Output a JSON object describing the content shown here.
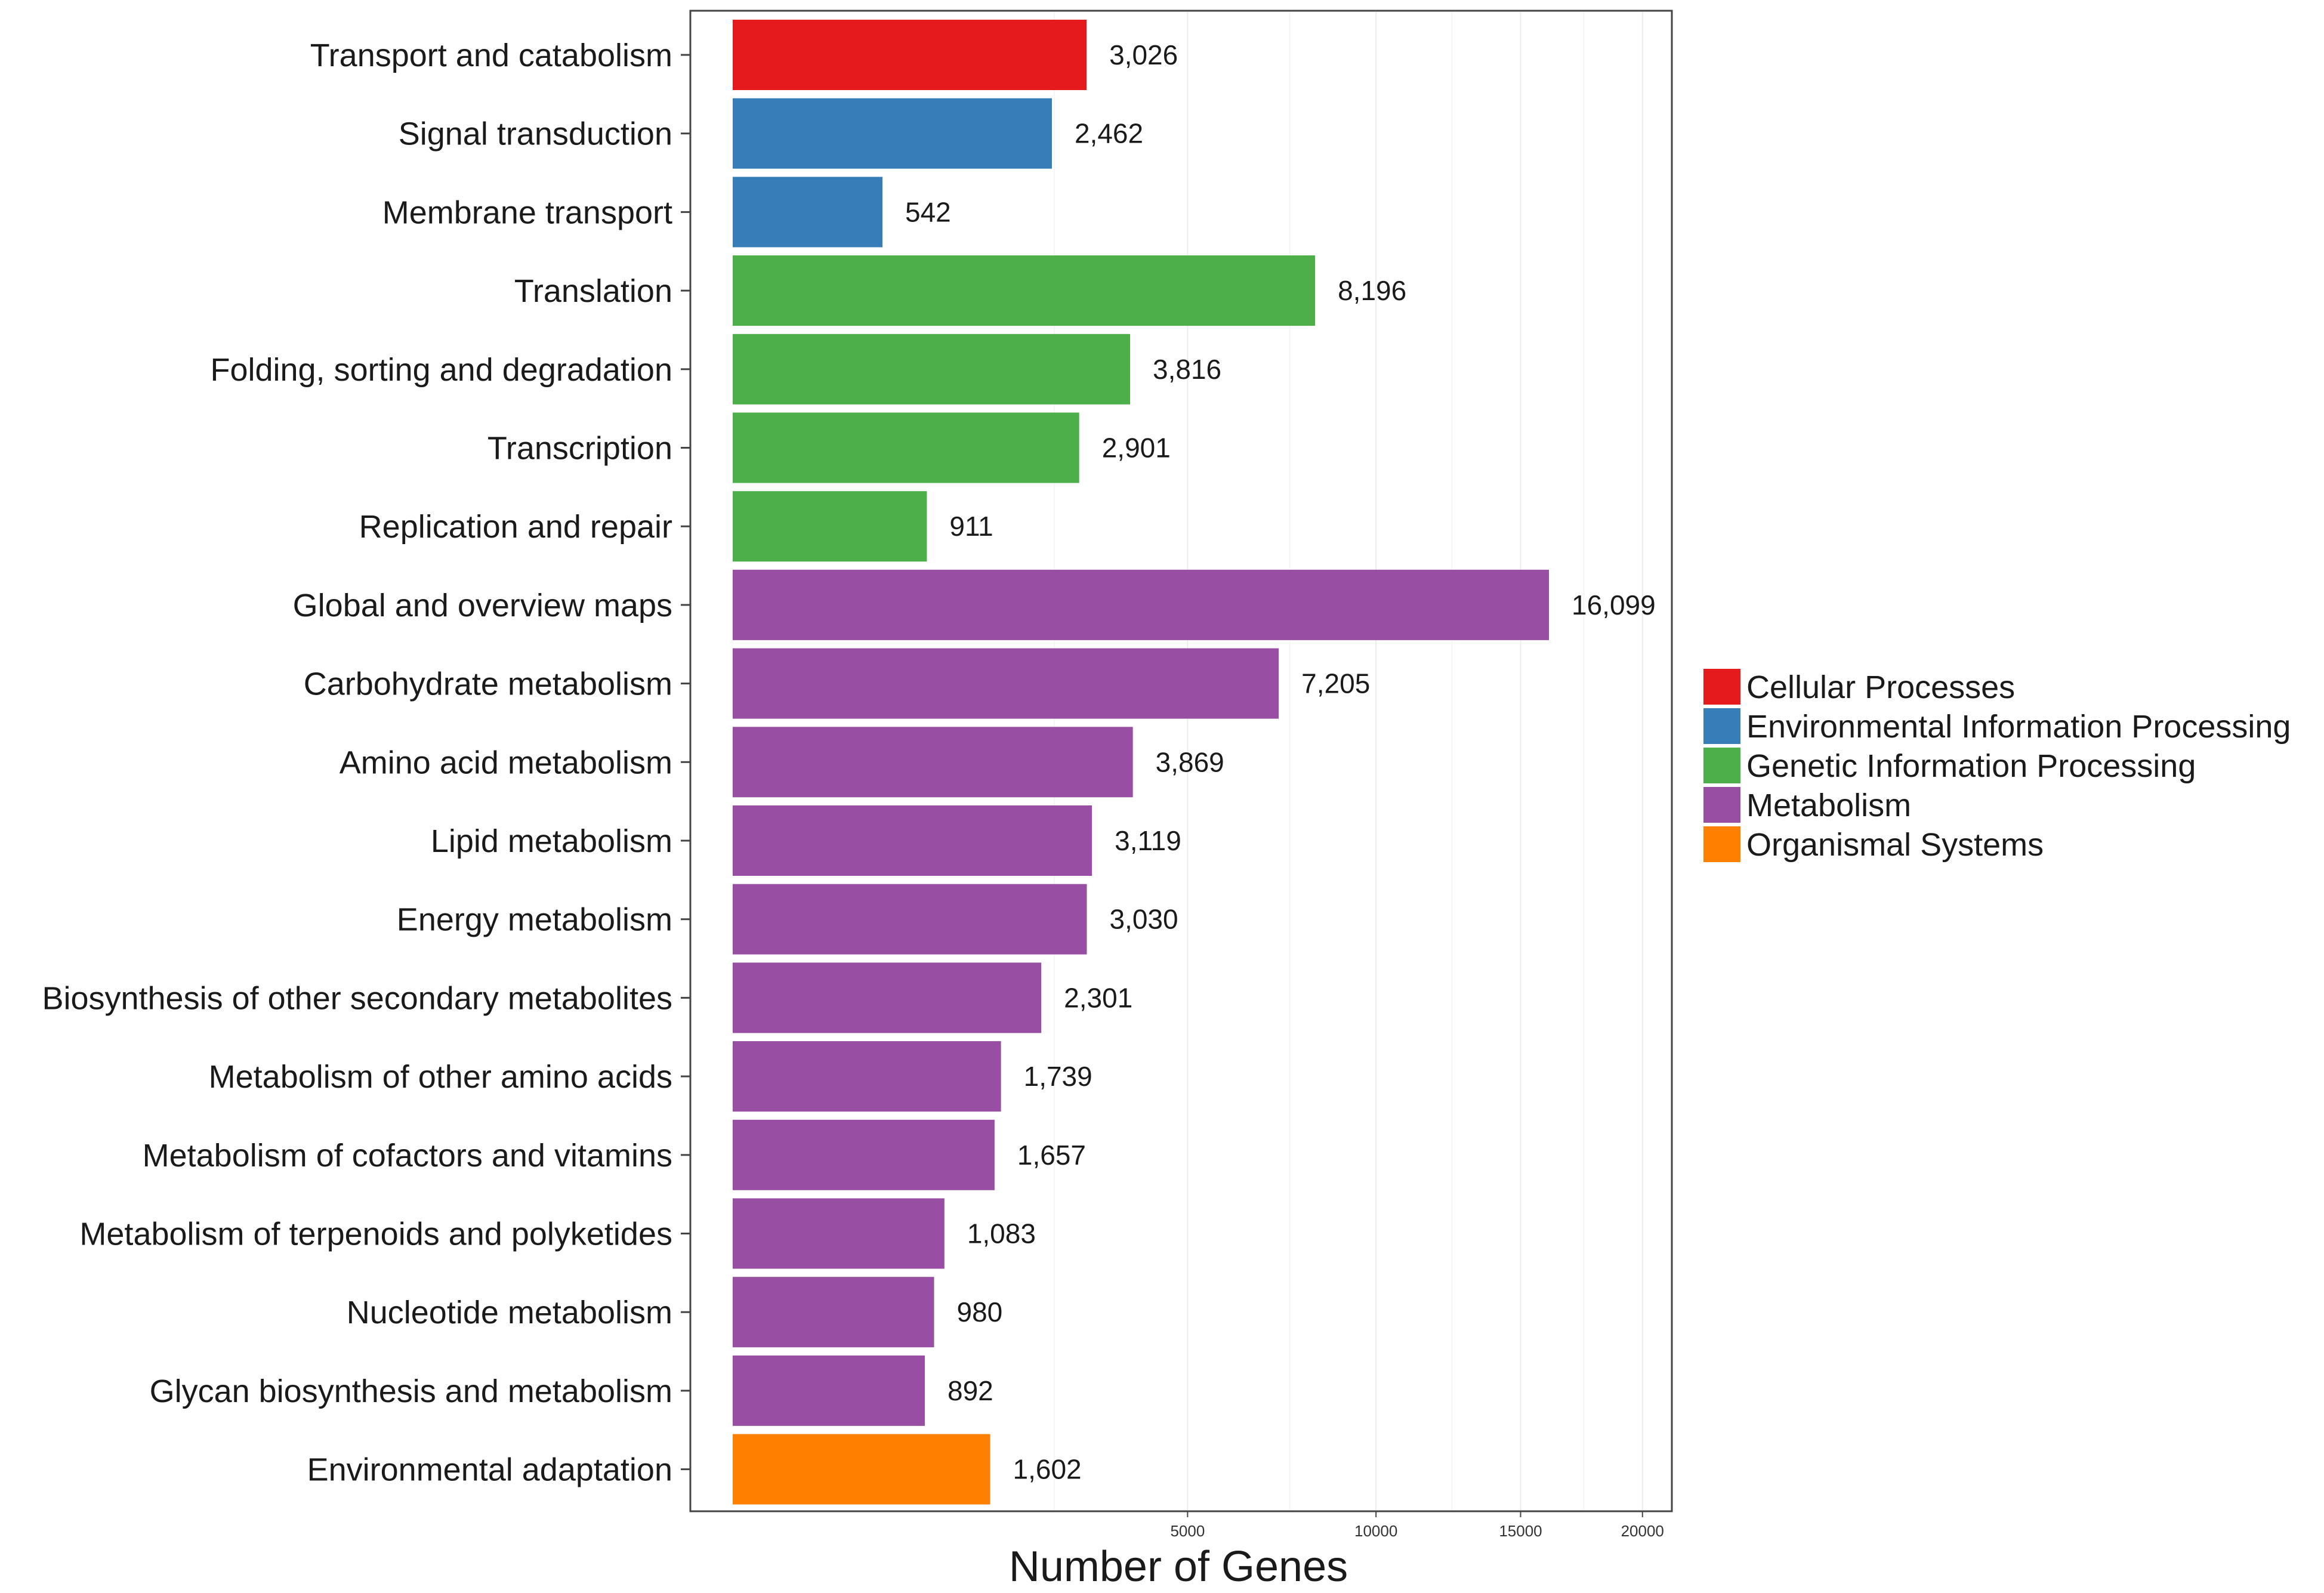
{
  "chart_data": {
    "type": "bar",
    "orientation": "horizontal",
    "title": "",
    "xlabel": "Number of Genes",
    "ylabel": "",
    "xlim": [
      0,
      20000
    ],
    "x_ticks": [
      5000,
      10000,
      15000,
      20000
    ],
    "grid": true,
    "legend_position": "right",
    "colors": {
      "Cellular Processes": "#e41a1c",
      "Environmental Information Processing": "#377eb8",
      "Genetic Information Processing": "#4daf4a",
      "Metabolism": "#984ea3",
      "Organismal Systems": "#ff7f00"
    },
    "legend": [
      "Cellular Processes",
      "Environmental Information Processing",
      "Genetic Information Processing",
      "Metabolism",
      "Organismal Systems"
    ],
    "bars": [
      {
        "label": "Transport and catabolism",
        "value": 3026,
        "display": "3,026",
        "group": "Cellular Processes"
      },
      {
        "label": "Signal transduction",
        "value": 2462,
        "display": "2,462",
        "group": "Environmental Information Processing"
      },
      {
        "label": "Membrane transport",
        "value": 542,
        "display": "542",
        "group": "Environmental Information Processing"
      },
      {
        "label": "Translation",
        "value": 8196,
        "display": "8,196",
        "group": "Genetic Information Processing"
      },
      {
        "label": "Folding, sorting and degradation",
        "value": 3816,
        "display": "3,816",
        "group": "Genetic Information Processing"
      },
      {
        "label": "Transcription",
        "value": 2901,
        "display": "2,901",
        "group": "Genetic Information Processing"
      },
      {
        "label": "Replication and repair",
        "value": 911,
        "display": "911",
        "group": "Genetic Information Processing"
      },
      {
        "label": "Global and overview maps",
        "value": 16099,
        "display": "16,099",
        "group": "Metabolism"
      },
      {
        "label": "Carbohydrate metabolism",
        "value": 7205,
        "display": "7,205",
        "group": "Metabolism"
      },
      {
        "label": "Amino acid metabolism",
        "value": 3869,
        "display": "3,869",
        "group": "Metabolism"
      },
      {
        "label": "Lipid metabolism",
        "value": 3119,
        "display": "3,119",
        "group": "Metabolism"
      },
      {
        "label": "Energy metabolism",
        "value": 3030,
        "display": "3,030",
        "group": "Metabolism"
      },
      {
        "label": "Biosynthesis of other secondary metabolites",
        "value": 2301,
        "display": "2,301",
        "group": "Metabolism"
      },
      {
        "label": "Metabolism of other amino acids",
        "value": 1739,
        "display": "1,739",
        "group": "Metabolism"
      },
      {
        "label": "Metabolism of cofactors and vitamins",
        "value": 1657,
        "display": "1,657",
        "group": "Metabolism"
      },
      {
        "label": "Metabolism of terpenoids and polyketides",
        "value": 1083,
        "display": "1,083",
        "group": "Metabolism"
      },
      {
        "label": "Nucleotide metabolism",
        "value": 980,
        "display": "980",
        "group": "Metabolism"
      },
      {
        "label": "Glycan biosynthesis and metabolism",
        "value": 892,
        "display": "892",
        "group": "Metabolism"
      },
      {
        "label": "Environmental adaptation",
        "value": 1602,
        "display": "1,602",
        "group": "Organismal Systems"
      }
    ]
  }
}
